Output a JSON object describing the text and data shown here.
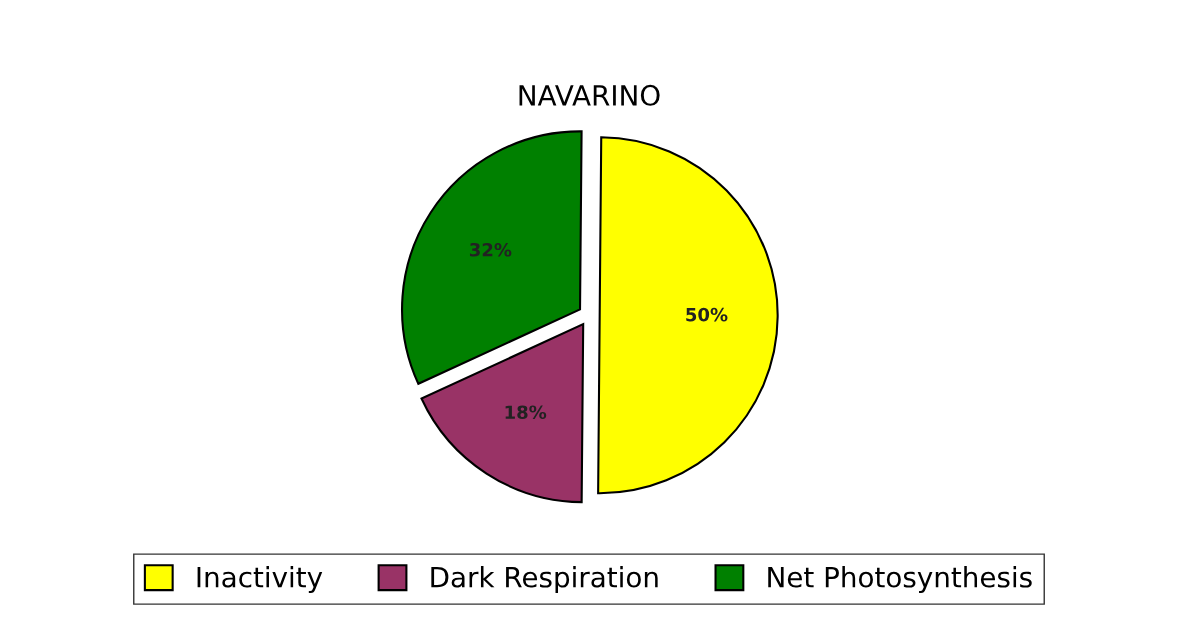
{
  "chart_data": {
    "type": "pie",
    "title": "NAVARINO",
    "categories": [
      "Inactivity",
      "Dark Respiration",
      "Net Photosynthesis"
    ],
    "values": [
      50,
      18,
      32
    ],
    "colors": [
      "#ffff00",
      "#993366",
      "#008000"
    ],
    "value_labels": [
      "50%",
      "18%",
      "32%"
    ],
    "legend": "bottom"
  }
}
